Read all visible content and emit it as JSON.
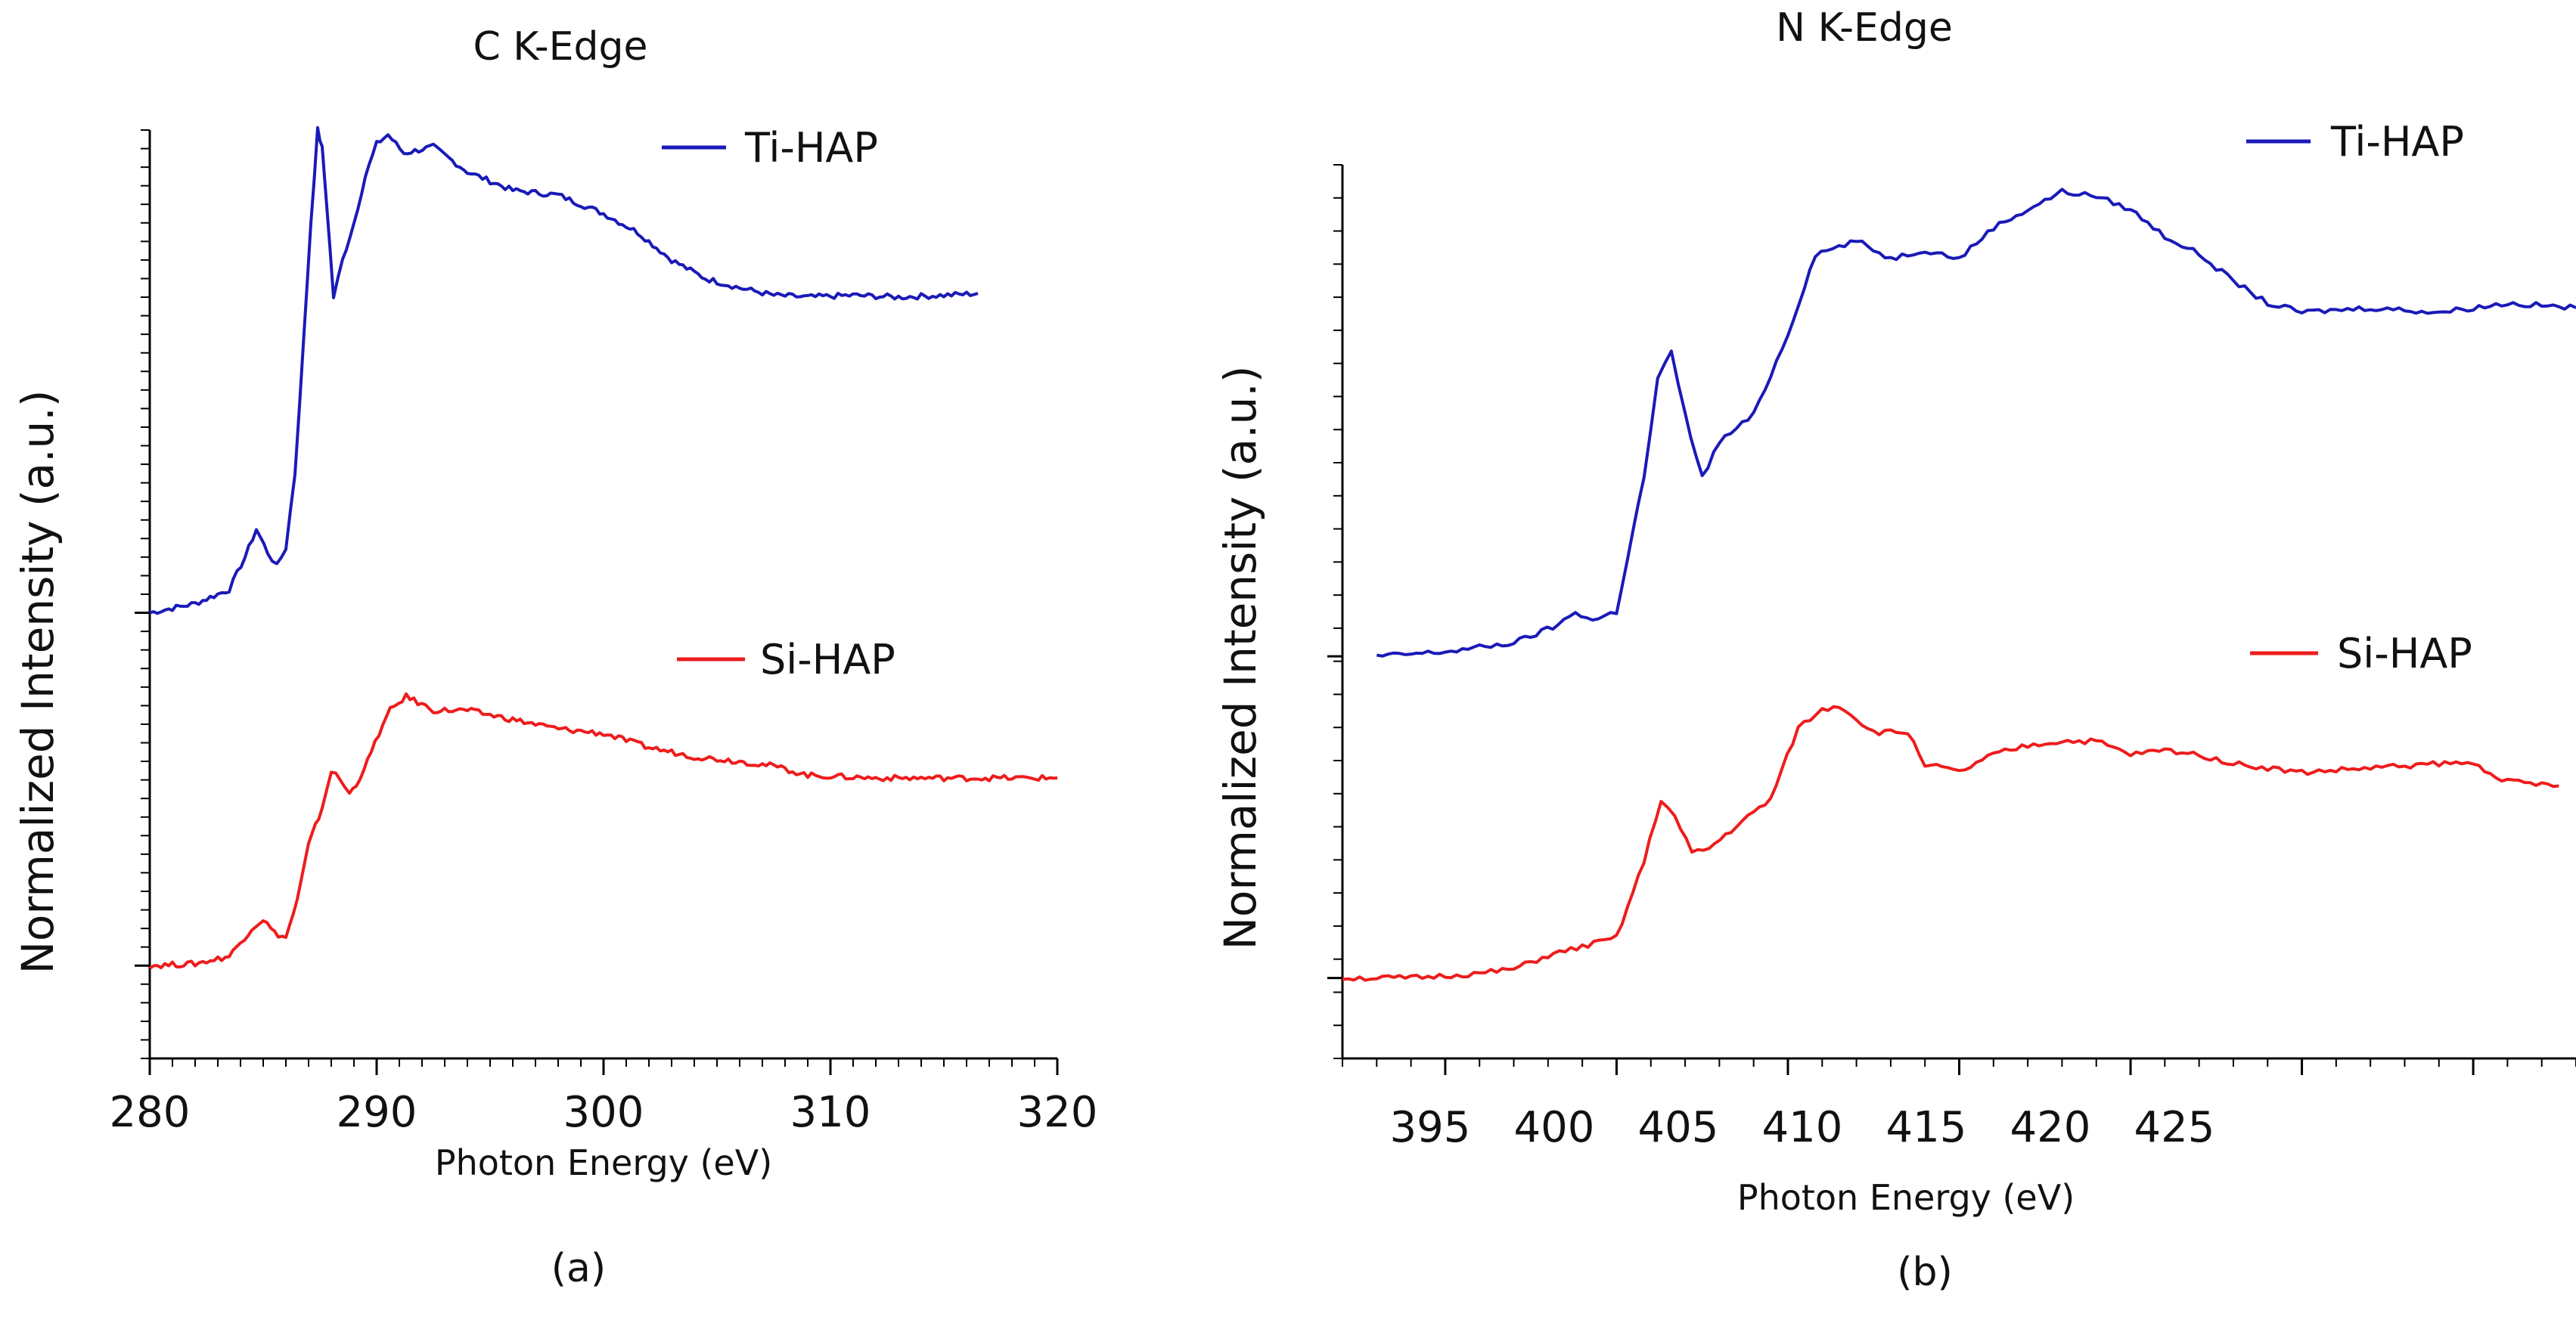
{
  "chart_data": [
    {
      "type": "line",
      "panel": "(a)",
      "title": "C K-Edge",
      "xlabel": "Photon Energy (eV)",
      "ylabel": "Normalized Intensity (a.u.)",
      "xlim": [
        280,
        320
      ],
      "ylim": [
        0,
        10
      ],
      "xticks": [
        280,
        290,
        300,
        310,
        320
      ],
      "yticks_labeled": false,
      "legend": [
        {
          "label": "Ti-HAP",
          "color": "#1a1ab8"
        },
        {
          "label": "Si-HAP",
          "color": "#ee1c1c"
        }
      ],
      "series": [
        {
          "name": "Ti-HAP",
          "color": "#1a1ab8",
          "x": [
            280,
            282,
            283.5,
            284.2,
            284.7,
            285.2,
            285.6,
            286.0,
            286.4,
            286.8,
            287.1,
            287.4,
            287.6,
            287.8,
            288.1,
            288.5,
            289.0,
            289.5,
            290.0,
            290.5,
            291.2,
            292.5,
            294,
            296,
            298,
            300,
            301.5,
            303,
            304.5,
            306,
            307.5,
            309,
            311,
            313,
            315,
            316.5
          ],
          "y": [
            4.8,
            4.9,
            5.05,
            5.4,
            5.7,
            5.45,
            5.3,
            5.5,
            6.3,
            7.8,
            9.0,
            10.0,
            9.8,
            9.2,
            8.2,
            8.6,
            9.0,
            9.5,
            9.85,
            9.95,
            9.75,
            9.82,
            9.55,
            9.35,
            9.3,
            9.1,
            8.9,
            8.6,
            8.4,
            8.3,
            8.22,
            8.2,
            8.22,
            8.2,
            8.22,
            8.24
          ]
        },
        {
          "name": "Si-HAP",
          "color": "#ee1c1c",
          "x": [
            280,
            282,
            283.5,
            284.5,
            285.0,
            285.5,
            286.0,
            286.5,
            287.0,
            287.6,
            288.0,
            288.4,
            288.8,
            289.1,
            289.6,
            290.1,
            290.6,
            291.3,
            292.5,
            294,
            296,
            298,
            300,
            302,
            304,
            306,
            307.5,
            309,
            312,
            316,
            320
          ],
          "y": [
            1.0,
            1.02,
            1.1,
            1.4,
            1.5,
            1.35,
            1.3,
            1.7,
            2.3,
            2.7,
            3.1,
            3.0,
            2.85,
            2.95,
            3.2,
            3.5,
            3.75,
            3.9,
            3.75,
            3.75,
            3.65,
            3.55,
            3.5,
            3.35,
            3.25,
            3.2,
            3.15,
            3.05,
            3.02,
            3.02,
            3.02
          ]
        }
      ]
    },
    {
      "type": "line",
      "panel": "(b)",
      "title": "N K-Edge",
      "xlabel": "Photon Energy (eV)",
      "ylabel": "Normalized Intensity (a.u.)",
      "xlim": [
        392,
        428
      ],
      "ylim": [
        0,
        10
      ],
      "xticks": [
        395,
        400,
        405,
        410,
        415,
        420,
        425
      ],
      "yticks_labeled": false,
      "legend": [
        {
          "label": "Ti-HAP",
          "color": "#1a1ab8"
        },
        {
          "label": "Si-HAP",
          "color": "#ee1c1c"
        }
      ],
      "series": [
        {
          "name": "Ti-HAP",
          "color": "#1a1ab8",
          "x": [
            393,
            395,
            397,
            398.3,
            398.8,
            399.3,
            400,
            400.8,
            401.2,
            401.6,
            402.0,
            402.5,
            403,
            404,
            405,
            405.8,
            407,
            408,
            409,
            410,
            411,
            412,
            413,
            414,
            415,
            416,
            417,
            418,
            419,
            420,
            422,
            424,
            426,
            428
          ],
          "y": [
            4.5,
            4.55,
            4.65,
            4.85,
            5.0,
            4.9,
            5.0,
            6.5,
            7.6,
            7.9,
            7.2,
            6.5,
            6.9,
            7.2,
            8.1,
            9.0,
            9.15,
            8.95,
            9.05,
            8.95,
            9.3,
            9.5,
            9.7,
            9.65,
            9.5,
            9.2,
            9.0,
            8.7,
            8.45,
            8.35,
            8.4,
            8.35,
            8.45,
            8.4
          ]
        },
        {
          "name": "Si-HAP",
          "color": "#ee1c1c",
          "x": [
            392,
            394,
            396,
            397,
            398,
            399,
            400,
            400.8,
            401.3,
            401.7,
            402.2,
            402.7,
            403.5,
            404.5,
            405.3,
            406.0,
            406.5,
            407.5,
            408.5,
            409,
            410,
            411,
            412,
            413,
            414,
            415,
            416,
            417,
            418,
            419,
            420,
            422,
            424,
            425,
            426,
            427.5
          ],
          "y": [
            0.9,
            0.9,
            0.95,
            1.0,
            1.15,
            1.25,
            1.35,
            2.2,
            2.9,
            2.7,
            2.3,
            2.35,
            2.6,
            2.9,
            3.7,
            3.9,
            3.95,
            3.65,
            3.65,
            3.3,
            3.2,
            3.4,
            3.5,
            3.55,
            3.55,
            3.4,
            3.45,
            3.4,
            3.3,
            3.25,
            3.2,
            3.25,
            3.3,
            3.3,
            3.1,
            3.05
          ]
        }
      ]
    }
  ]
}
